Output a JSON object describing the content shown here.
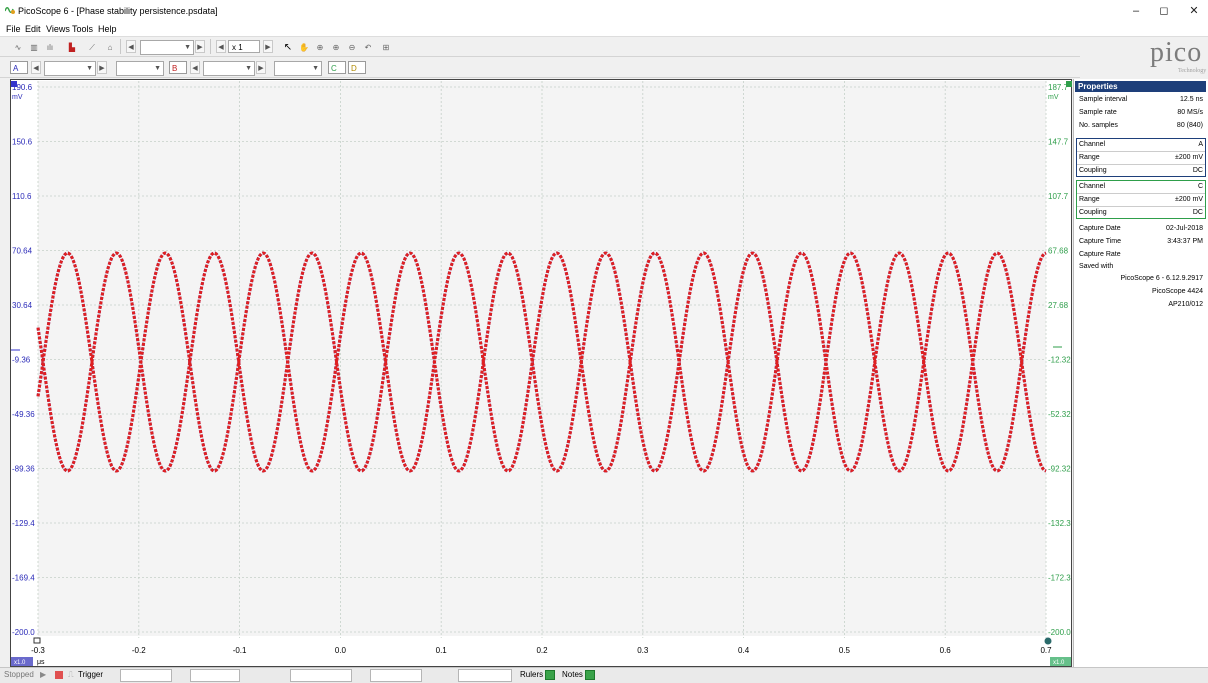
{
  "window": {
    "title": "PicoScope 6 - [Phase stability persistence.psdata]",
    "minimize_glyph": "–",
    "maximize_glyph": "◻",
    "close_glyph": "✕"
  },
  "menu": {
    "items": [
      "File",
      "Edit",
      "Views",
      "Tools",
      "Help"
    ]
  },
  "toolbar": {
    "zoom_value": "x 1",
    "channel_a": "A",
    "channel_b": "B",
    "channel_c": "C",
    "channel_d": "D"
  },
  "logo": {
    "text": "pico",
    "subtext": "Technology"
  },
  "scope": {
    "left_axis": {
      "unit": "mV",
      "ticks": [
        "190.6",
        "150.6",
        "110.6",
        "70.64",
        "30.64",
        "-9.36",
        "-49.36",
        "-89.36",
        "-129.4",
        "-169.4",
        "-200.0"
      ],
      "color": "#2a2ab8"
    },
    "right_axis": {
      "unit": "mV",
      "ticks": [
        "187.7",
        "147.7",
        "107.7",
        "67.68",
        "27.68",
        "-12.32",
        "-52.32",
        "-92.32",
        "-132.3",
        "-172.3",
        "-200.0"
      ],
      "color": "#2e9e4a"
    },
    "x_axis": {
      "unit": "μs",
      "ticks": [
        "-0.3",
        "-0.2",
        "-0.1",
        "0.0",
        "0.1",
        "0.2",
        "0.3",
        "0.4",
        "0.5",
        "0.6",
        "0.7"
      ],
      "left_badge": "x1.0",
      "right_badge": "x1.0"
    },
    "colors": {
      "channel_a": "#3333cc",
      "channel_c": "#e02020",
      "grid": "#c5d0c8"
    }
  },
  "properties": {
    "title": "Properties",
    "general": [
      {
        "k": "Sample interval",
        "v": "12.5 ns"
      },
      {
        "k": "Sample rate",
        "v": "80 MS/s"
      },
      {
        "k": "No. samples",
        "v": "80 (840)"
      }
    ],
    "channel_a": [
      {
        "k": "Channel",
        "v": "A"
      },
      {
        "k": "Range",
        "v": "±200 mV"
      },
      {
        "k": "Coupling",
        "v": "DC"
      }
    ],
    "channel_c": [
      {
        "k": "Channel",
        "v": "C"
      },
      {
        "k": "Range",
        "v": "±200 mV"
      },
      {
        "k": "Coupling",
        "v": "DC"
      }
    ],
    "capture": [
      {
        "k": "Capture Date",
        "v": "02-Jul-2018"
      },
      {
        "k": "Capture Time",
        "v": "3:43:37 PM"
      },
      {
        "k": "Capture Rate",
        "v": ""
      },
      {
        "k": "Saved with",
        "v": ""
      }
    ],
    "saved_with": [
      "PicoScope 6 - 6.12.9.2917",
      "PicoScope 4424",
      "AP210/012"
    ]
  },
  "statusbar": {
    "state": "Stopped",
    "trigger_label": "Trigger",
    "rulers_label": "Rulers",
    "notes_label": "Notes"
  }
}
